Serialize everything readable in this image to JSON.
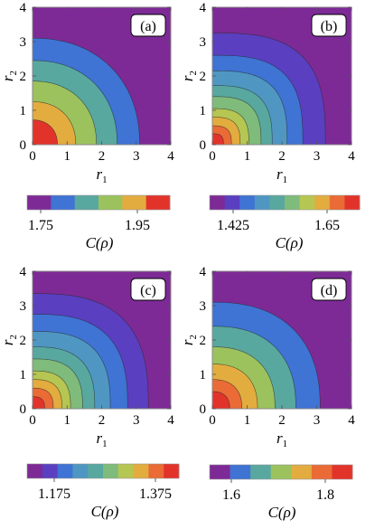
{
  "figure": {
    "panels": [
      {
        "label": "(a)",
        "xlabel": "r",
        "xlabel_sub": "1",
        "ylabel": "r",
        "ylabel_sub": "2",
        "x_ticks": [
          "0",
          "1",
          "2",
          "3",
          "4"
        ],
        "y_ticks": [
          "0",
          "1",
          "2",
          "3",
          "4"
        ],
        "colorbar_label": "C(ρ)",
        "colorbar_ticks": [
          "1.75",
          "1.95"
        ],
        "colorbar_colors": [
          "#7d2a96",
          "#3f73d4",
          "#58a8a0",
          "#9cc25e",
          "#e3ac3f",
          "#e2332b"
        ]
      },
      {
        "label": "(b)",
        "xlabel": "r",
        "xlabel_sub": "1",
        "ylabel": "r",
        "ylabel_sub": "2",
        "x_ticks": [
          "0",
          "1",
          "2",
          "3",
          "4"
        ],
        "y_ticks": [
          "0",
          "1",
          "2",
          "3",
          "4"
        ],
        "colorbar_label": "C(ρ)",
        "colorbar_ticks": [
          "1.425",
          "1.65"
        ],
        "colorbar_colors": [
          "#7d2a96",
          "#5a3fc0",
          "#3f73d4",
          "#4f97c2",
          "#58a8a0",
          "#7fbb7a",
          "#b6c652",
          "#e3ac3f",
          "#ea6b35",
          "#e2332b"
        ]
      },
      {
        "label": "(c)",
        "xlabel": "r",
        "xlabel_sub": "1",
        "ylabel": "r",
        "ylabel_sub": "2",
        "x_ticks": [
          "0",
          "1",
          "2",
          "3",
          "4"
        ],
        "y_ticks": [
          "0",
          "1",
          "2",
          "3",
          "4"
        ],
        "colorbar_label": "C(ρ)",
        "colorbar_ticks": [
          "1.175",
          "1.375"
        ],
        "colorbar_colors": [
          "#7d2a96",
          "#5a3fc0",
          "#3f73d4",
          "#4f97c2",
          "#58a8a0",
          "#7fbb7a",
          "#b6c652",
          "#e3ac3f",
          "#ea6b35",
          "#e2332b"
        ]
      },
      {
        "label": "(d)",
        "xlabel": "r",
        "xlabel_sub": "1",
        "ylabel": "r",
        "ylabel_sub": "2",
        "x_ticks": [
          "0",
          "1",
          "2",
          "3",
          "4"
        ],
        "y_ticks": [
          "0",
          "1",
          "2",
          "3",
          "4"
        ],
        "colorbar_label": "C(ρ)",
        "colorbar_ticks": [
          "1.6",
          "1.8"
        ],
        "colorbar_colors": [
          "#7d2a96",
          "#3f73d4",
          "#58a8a0",
          "#9cc25e",
          "#e3ac3f",
          "#ea6b35",
          "#e2332b"
        ]
      }
    ]
  },
  "chart_data": [
    {
      "type": "heatmap",
      "title": "(a)",
      "xlabel": "r1",
      "ylabel": "r2",
      "xlim": [
        0,
        4
      ],
      "ylim": [
        0,
        4
      ],
      "colorbar": {
        "label": "C(ρ)",
        "ticks": [
          1.75,
          1.95
        ],
        "levels": 6
      },
      "contour_radii": [
        0.72,
        1.25,
        1.85,
        2.45,
        3.1
      ],
      "contour_sharpness": 2.2,
      "grid": false
    },
    {
      "type": "heatmap",
      "title": "(b)",
      "xlabel": "r1",
      "ylabel": "r2",
      "xlim": [
        0,
        4
      ],
      "ylim": [
        0,
        4
      ],
      "colorbar": {
        "label": "C(ρ)",
        "ticks": [
          1.425,
          1.65
        ],
        "levels": 10
      },
      "contour_radii": [
        0.32,
        0.55,
        0.8,
        1.05,
        1.4,
        1.72,
        2.15,
        2.6,
        3.25
      ],
      "contour_sharpness": 3.0,
      "grid": false
    },
    {
      "type": "heatmap",
      "title": "(c)",
      "xlabel": "r1",
      "ylabel": "r2",
      "xlim": [
        0,
        4
      ],
      "ylim": [
        0,
        4
      ],
      "colorbar": {
        "label": "C(ρ)",
        "ticks": [
          1.175,
          1.375
        ],
        "levels": 10
      },
      "contour_radii": [
        0.35,
        0.6,
        0.85,
        1.1,
        1.45,
        1.8,
        2.25,
        2.75,
        3.35
      ],
      "contour_sharpness": 2.8,
      "grid": false
    },
    {
      "type": "heatmap",
      "title": "(d)",
      "xlabel": "r1",
      "ylabel": "r2",
      "xlim": [
        0,
        4
      ],
      "ylim": [
        0,
        4
      ],
      "colorbar": {
        "label": "C(ρ)",
        "ticks": [
          1.6,
          1.8
        ],
        "levels": 7
      },
      "contour_radii": [
        0.5,
        0.85,
        1.3,
        1.8,
        2.4,
        3.1
      ],
      "contour_sharpness": 2.4,
      "grid": false
    }
  ]
}
